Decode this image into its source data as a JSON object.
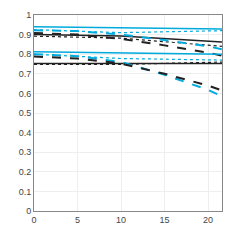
{
  "chart_data": {
    "type": "line",
    "xlim": [
      0,
      21.6
    ],
    "ylim": [
      0,
      1.0
    ],
    "xticks": [
      0,
      5,
      10,
      15,
      20
    ],
    "yticks": [
      0,
      0.1,
      0.2,
      0.3,
      0.4,
      0.5,
      0.6,
      0.7,
      0.8,
      0.9,
      1
    ],
    "grid": true,
    "series": [
      {
        "color": "#00aadd",
        "line_style": "solid",
        "x": [
          0,
          10,
          21.6
        ],
        "values": [
          0.94,
          0.935,
          0.928
        ]
      },
      {
        "color": "#00aadd",
        "line_style": "dotted",
        "x": [
          0,
          10,
          21.6
        ],
        "values": [
          0.925,
          0.91,
          0.92
        ]
      },
      {
        "color": "#222222",
        "line_style": "solid",
        "x": [
          0,
          10,
          21.6
        ],
        "values": [
          0.9,
          0.893,
          0.862
        ]
      },
      {
        "color": "#222222",
        "line_style": "dotted",
        "x": [
          0,
          10,
          21.6
        ],
        "values": [
          0.892,
          0.882,
          0.84
        ]
      },
      {
        "color": "#00aadd",
        "line_style": "dashed",
        "x": [
          0,
          5,
          10,
          15,
          20,
          21.6
        ],
        "values": [
          0.922,
          0.918,
          0.9,
          0.872,
          0.84,
          0.825
        ]
      },
      {
        "color": "#222222",
        "line_style": "dashed",
        "x": [
          0,
          5,
          10,
          15,
          20,
          21.6
        ],
        "values": [
          0.908,
          0.9,
          0.878,
          0.845,
          0.808,
          0.792
        ]
      },
      {
        "color": "#00aadd",
        "line_style": "solid",
        "x": [
          0,
          10,
          21.6
        ],
        "values": [
          0.812,
          0.808,
          0.8
        ]
      },
      {
        "color": "#00aadd",
        "line_style": "dotted",
        "x": [
          0,
          10,
          21.6
        ],
        "values": [
          0.8,
          0.778,
          0.77
        ]
      },
      {
        "color": "#222222",
        "line_style": "solid",
        "x": [
          0,
          10,
          21.6
        ],
        "values": [
          0.752,
          0.752,
          0.752
        ]
      },
      {
        "color": "#222222",
        "line_style": "dotted",
        "x": [
          0,
          10,
          21.6
        ],
        "values": [
          0.748,
          0.748,
          0.76
        ]
      },
      {
        "color": "#00aadd",
        "line_style": "dashed",
        "x": [
          0,
          5,
          10,
          15,
          20,
          21.6
        ],
        "values": [
          0.8,
          0.79,
          0.76,
          0.695,
          0.618,
          0.585
        ]
      },
      {
        "color": "#222222",
        "line_style": "dashed",
        "x": [
          0,
          5,
          10,
          15,
          20,
          21.6
        ],
        "values": [
          0.788,
          0.778,
          0.752,
          0.7,
          0.64,
          0.615
        ]
      }
    ]
  }
}
